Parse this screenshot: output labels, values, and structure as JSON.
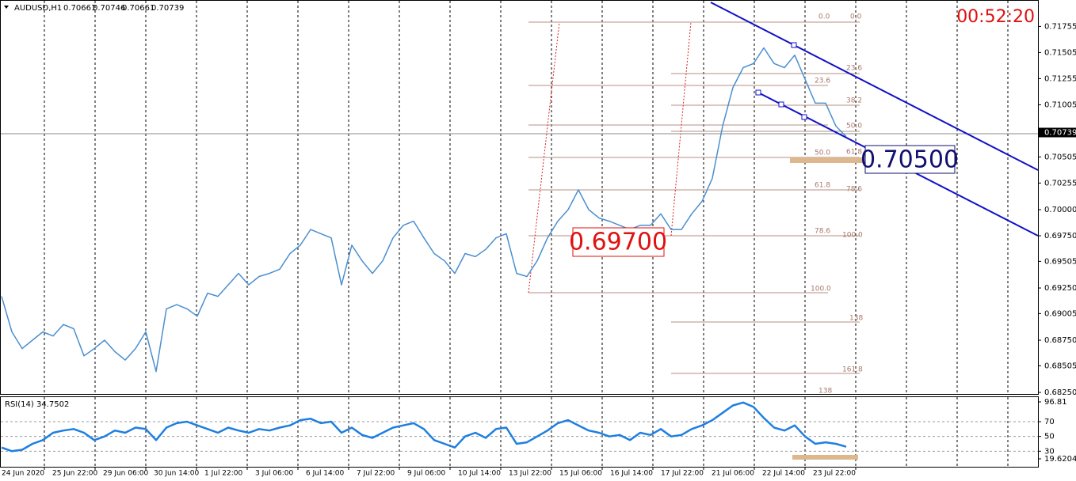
{
  "header": {
    "symbol": "AUDUSD,H1",
    "ohlc": [
      0.70661,
      0.70746,
      0.70661,
      0.70739
    ]
  },
  "timer": "00:52:20",
  "chart_data": [
    {
      "type": "line",
      "color": "#4a8fd0",
      "values": [
        0.6917,
        0.6883,
        0.6867,
        0.6875,
        0.6883,
        0.6879,
        0.689,
        0.6886,
        0.686,
        0.6867,
        0.6875,
        0.6864,
        0.6856,
        0.6867,
        0.6883,
        0.6845,
        0.6905,
        0.6909,
        0.6905,
        0.6898,
        0.692,
        0.6917,
        0.6928,
        0.6939,
        0.6928,
        0.6936,
        0.6939,
        0.6943,
        0.6958,
        0.6966,
        0.6981,
        0.6977,
        0.6973,
        0.6928,
        0.6966,
        0.6951,
        0.6939,
        0.6951,
        0.6973,
        0.6985,
        0.6989,
        0.6973,
        0.6958,
        0.6951,
        0.6939,
        0.6958,
        0.6955,
        0.6962,
        0.6973,
        0.6977,
        0.6939,
        0.6936,
        0.6951,
        0.6973,
        0.6989,
        0.7,
        0.7019,
        0.7,
        0.6992,
        0.6989,
        0.6985,
        0.6981,
        0.6985,
        0.6985,
        0.6996,
        0.6981,
        0.6981,
        0.6996,
        0.7008,
        0.703,
        0.708,
        0.7117,
        0.7136,
        0.714,
        0.7155,
        0.714,
        0.7136,
        0.7148,
        0.7125,
        0.7102,
        0.7102,
        0.708,
        0.707
      ],
      "ylim": [
        0.68235,
        0.72008
      ],
      "yticks": [
        0.71755,
        0.71505,
        0.71255,
        0.71005,
        0.70505,
        0.70255,
        {
          "value": 0.7,
          "label": "0.70000"
        },
        {
          "value": 0.6975,
          "label": "0.69750"
        },
        0.69505,
        {
          "value": 0.6925,
          "label": "0.69250"
        },
        0.69005,
        {
          "value": 0.6875,
          "label": "0.68750"
        },
        0.68505,
        {
          "value": 0.6825,
          "label": "0.68250"
        }
      ],
      "current_price": 0.70739,
      "annotations": [
        "0.69700",
        "0.70500"
      ],
      "fib_labels": [
        "0.0",
        "0.0",
        "23.6",
        "23.6",
        "38.2",
        "50.0",
        "50.0",
        "61.8",
        "61.8",
        "78.6",
        "78.6",
        "100.0",
        "100.0",
        "138",
        "161.8",
        "138"
      ]
    },
    {
      "type": "line",
      "title": "RSI(14) 34.7502",
      "color": "#1e7fe0",
      "values": [
        35,
        30,
        32,
        40,
        45,
        55,
        58,
        60,
        55,
        45,
        50,
        58,
        55,
        62,
        60,
        45,
        62,
        68,
        70,
        65,
        60,
        55,
        62,
        58,
        55,
        60,
        58,
        62,
        65,
        72,
        74,
        68,
        70,
        55,
        62,
        52,
        48,
        55,
        62,
        65,
        68,
        60,
        45,
        40,
        35,
        50,
        55,
        48,
        60,
        62,
        40,
        42,
        50,
        58,
        68,
        72,
        65,
        58,
        55,
        50,
        52,
        45,
        55,
        52,
        60,
        50,
        52,
        60,
        65,
        72,
        82,
        92,
        96,
        90,
        75,
        62,
        58,
        65,
        50,
        40,
        42,
        40,
        36
      ],
      "ylim": [
        19.6204,
        96.81
      ],
      "yticks": [
        96.81,
        70,
        50,
        30,
        19.6204
      ],
      "xtick_labels": [
        "24 Jun 2020",
        "25 Jun 22:00",
        "29 Jun 06:00",
        "30 Jun 14:00",
        "1 Jul 22:00",
        "3 Jul 06:00",
        "6 Jul 14:00",
        "7 Jul 22:00",
        "9 Jul 06:00",
        "10 Jul 14:00",
        "13 Jul 22:00",
        "15 Jul 06:00",
        "16 Jul 14:00",
        "17 Jul 22:00",
        "21 Jul 06:00",
        "22 Jul 14:00",
        "23 Jul 22:00"
      ]
    }
  ]
}
